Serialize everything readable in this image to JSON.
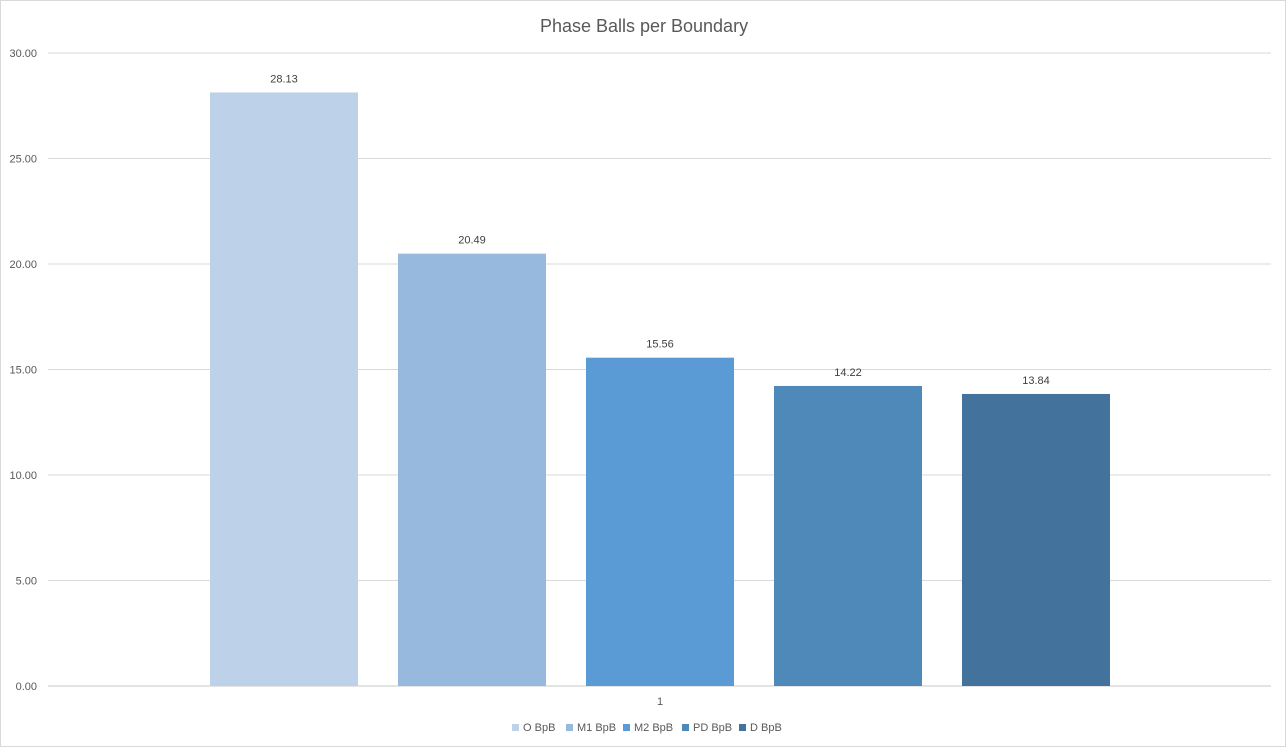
{
  "chart_data": {
    "type": "bar",
    "title": "Phase Balls per Boundary",
    "xlabel": "",
    "ylabel": "",
    "categories": [
      "1"
    ],
    "ylim": [
      0,
      30
    ],
    "yticks": [
      "0.00",
      "5.00",
      "10.00",
      "15.00",
      "20.00",
      "25.00",
      "30.00"
    ],
    "grid": true,
    "legend_position": "bottom",
    "series": [
      {
        "name": "O BpB",
        "values": [
          28.13
        ],
        "label": "28.13",
        "color": "#bdd1e9"
      },
      {
        "name": "M1 BpB",
        "values": [
          20.49
        ],
        "label": "20.49",
        "color": "#98b9de"
      },
      {
        "name": "M2 BpB",
        "values": [
          15.56
        ],
        "label": "15.56",
        "color": "#5b9bd5"
      },
      {
        "name": "PD BpB",
        "values": [
          14.22
        ],
        "label": "14.22",
        "color": "#4f89ba"
      },
      {
        "name": "D BpB",
        "values": [
          13.84
        ],
        "label": "13.84",
        "color": "#43739c"
      }
    ]
  }
}
